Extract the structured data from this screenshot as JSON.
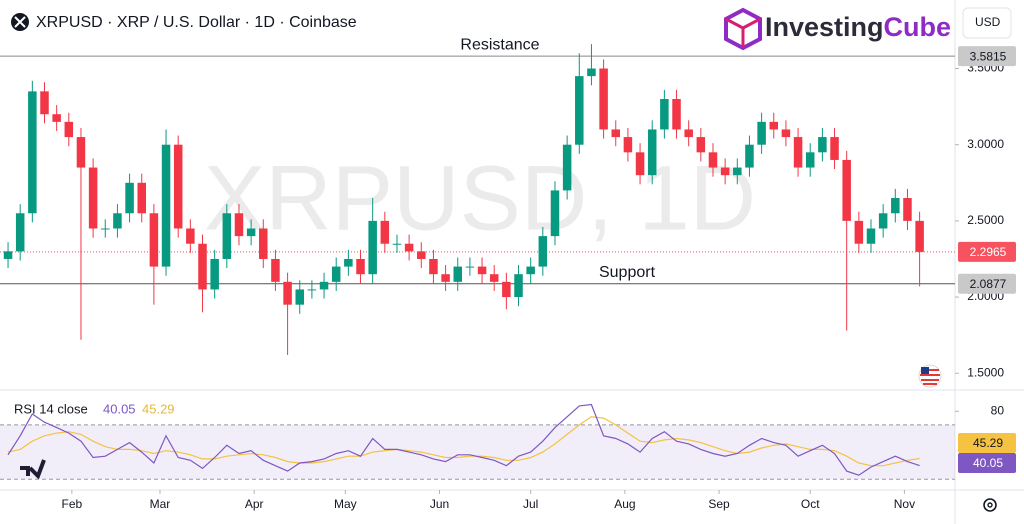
{
  "chart_data": {
    "type": "candlestick",
    "title": "XRPUSD · XRP / U.S. Dollar · 1D · Coinbase",
    "currency": "USD",
    "watermark": "XRPUSD, 1D",
    "logo": {
      "text1": "Investing",
      "text2": "Cube"
    },
    "up_color": "#089981",
    "down_color": "#f23645",
    "xlim": [
      9,
      320
    ],
    "xticks": [
      {
        "value": 31,
        "label": "Feb"
      },
      {
        "value": 60,
        "label": "Mar"
      },
      {
        "value": 91,
        "label": "Apr"
      },
      {
        "value": 121,
        "label": "May"
      },
      {
        "value": 152,
        "label": "Jun"
      },
      {
        "value": 182,
        "label": "Jul"
      },
      {
        "value": 213,
        "label": "Aug"
      },
      {
        "value": 244,
        "label": "Sep"
      },
      {
        "value": 274,
        "label": "Oct"
      },
      {
        "value": 305,
        "label": "Nov"
      }
    ],
    "ylim": [
      1.39,
      3.72
    ],
    "yticks": [
      {
        "value": 1.5,
        "label": "1.5000"
      },
      {
        "value": 2,
        "label": "2.0000"
      },
      {
        "value": 2.5,
        "label": "2.5000"
      },
      {
        "value": 3,
        "label": "3.0000"
      },
      {
        "value": 3.5,
        "label": "3.5000"
      }
    ],
    "levels": [
      {
        "label": "Resistance",
        "value": 3.5815,
        "color": "#888888"
      },
      {
        "label": "Support",
        "value": 2.0877,
        "color": "#555555"
      }
    ],
    "last_color": "#f7525f",
    "x": [
      10,
      14,
      18,
      22,
      26,
      30,
      34,
      38,
      42,
      46,
      50,
      54,
      58,
      62,
      66,
      70,
      74,
      78,
      82,
      86,
      90,
      94,
      98,
      102,
      106,
      110,
      114,
      118,
      122,
      126,
      130,
      134,
      138,
      142,
      146,
      150,
      154,
      158,
      162,
      166,
      170,
      174,
      178,
      182,
      186,
      190,
      194,
      198,
      202,
      206,
      210,
      214,
      218,
      222,
      226,
      230,
      234,
      238,
      242,
      246,
      250,
      254,
      258,
      262,
      266,
      270,
      274,
      278,
      282,
      286,
      290,
      294,
      298,
      302,
      306,
      310
    ],
    "open": [
      2.25,
      2.3,
      2.55,
      3.35,
      3.2,
      3.15,
      3.05,
      2.85,
      2.45,
      2.45,
      2.55,
      2.75,
      2.55,
      2.2,
      3.0,
      2.45,
      2.35,
      2.05,
      2.25,
      2.55,
      2.4,
      2.45,
      2.25,
      2.1,
      1.95,
      2.05,
      2.05,
      2.1,
      2.2,
      2.25,
      2.15,
      2.5,
      2.35,
      2.35,
      2.3,
      2.25,
      2.15,
      2.1,
      2.2,
      2.2,
      2.15,
      2.1,
      2.0,
      2.15,
      2.2,
      2.4,
      2.7,
      3.0,
      3.45,
      3.5,
      3.1,
      3.05,
      2.95,
      2.8,
      3.1,
      3.3,
      3.1,
      3.05,
      2.95,
      2.85,
      2.8,
      2.85,
      3.0,
      3.15,
      3.1,
      3.05,
      2.85,
      2.95,
      3.05,
      2.9,
      2.5,
      2.35,
      2.45,
      2.55,
      2.65,
      2.5
    ],
    "high": [
      2.36,
      2.61,
      3.42,
      3.41,
      3.26,
      3.21,
      3.11,
      2.91,
      2.51,
      2.61,
      2.81,
      2.81,
      2.61,
      3.1,
      3.06,
      2.51,
      2.41,
      2.31,
      2.61,
      2.61,
      2.51,
      2.51,
      2.31,
      2.16,
      2.11,
      2.11,
      2.16,
      2.26,
      2.31,
      2.31,
      2.65,
      2.56,
      2.41,
      2.41,
      2.36,
      2.31,
      2.21,
      2.26,
      2.26,
      2.26,
      2.21,
      2.16,
      2.21,
      2.26,
      2.46,
      2.76,
      3.06,
      3.6,
      3.66,
      3.56,
      3.16,
      3.11,
      3.01,
      3.16,
      3.36,
      3.36,
      3.16,
      3.11,
      3.01,
      2.91,
      2.91,
      3.06,
      3.21,
      3.21,
      3.16,
      3.11,
      3.01,
      3.11,
      3.11,
      2.96,
      2.56,
      2.51,
      2.61,
      2.71,
      2.71,
      2.56
    ],
    "low": [
      2.19,
      2.24,
      2.49,
      3.14,
      3.09,
      2.99,
      1.72,
      2.39,
      2.39,
      2.39,
      2.49,
      2.49,
      1.95,
      2.14,
      2.39,
      2.29,
      1.9,
      1.99,
      2.19,
      2.34,
      2.34,
      2.19,
      2.04,
      1.62,
      1.89,
      1.99,
      1.99,
      2.04,
      2.14,
      2.09,
      2.09,
      2.29,
      2.29,
      2.24,
      2.19,
      2.09,
      2.04,
      2.04,
      2.14,
      2.09,
      2.04,
      1.92,
      1.94,
      2.09,
      2.14,
      2.34,
      2.64,
      2.94,
      3.39,
      3.04,
      2.99,
      2.89,
      2.74,
      2.74,
      3.04,
      3.04,
      2.99,
      2.89,
      2.79,
      2.74,
      2.74,
      2.79,
      2.94,
      3.04,
      2.99,
      2.79,
      2.79,
      2.89,
      2.84,
      1.78,
      2.29,
      2.29,
      2.39,
      2.49,
      2.44,
      2.07
    ],
    "close": [
      2.3,
      2.55,
      3.35,
      3.2,
      3.15,
      3.05,
      2.85,
      2.45,
      2.45,
      2.55,
      2.75,
      2.55,
      2.2,
      3.0,
      2.45,
      2.35,
      2.05,
      2.25,
      2.55,
      2.4,
      2.45,
      2.25,
      2.1,
      1.95,
      2.05,
      2.05,
      2.1,
      2.2,
      2.25,
      2.15,
      2.5,
      2.35,
      2.35,
      2.3,
      2.25,
      2.15,
      2.1,
      2.2,
      2.2,
      2.15,
      2.1,
      2.0,
      2.15,
      2.2,
      2.4,
      2.7,
      3.0,
      3.45,
      3.5,
      3.1,
      3.05,
      2.95,
      2.8,
      3.1,
      3.3,
      3.1,
      3.05,
      2.95,
      2.85,
      2.8,
      2.85,
      3.0,
      3.15,
      3.1,
      3.05,
      2.85,
      2.95,
      3.05,
      2.9,
      2.5,
      2.35,
      2.45,
      2.55,
      2.65,
      2.5,
      2.2965
    ],
    "rsi": {
      "label": "RSI 14 close",
      "ylim": [
        28,
        92
      ],
      "yticks": [
        80
      ],
      "bands": [
        70,
        30
      ],
      "color": "#7e57c2",
      "ma_color": "#f5c242",
      "values": [
        48,
        62,
        78,
        72,
        68,
        64,
        58,
        46,
        47,
        52,
        57,
        50,
        42,
        62,
        46,
        44,
        38,
        46,
        55,
        49,
        51,
        44,
        40,
        36,
        42,
        43,
        45,
        49,
        51,
        47,
        60,
        52,
        52,
        50,
        48,
        45,
        43,
        48,
        48,
        46,
        44,
        40,
        47,
        50,
        58,
        68,
        76,
        84,
        85,
        62,
        60,
        56,
        50,
        60,
        65,
        58,
        56,
        52,
        49,
        47,
        49,
        55,
        60,
        57,
        55,
        47,
        51,
        55,
        49,
        36,
        33,
        39,
        43,
        47,
        43,
        40.05
      ],
      "ma": [
        50,
        52,
        58,
        62,
        64,
        65,
        63,
        58,
        54,
        52,
        52,
        51,
        49,
        51,
        50,
        48,
        45,
        45,
        47,
        48,
        49,
        48,
        46,
        43,
        42,
        42,
        43,
        45,
        47,
        47,
        50,
        51,
        52,
        51,
        50,
        48,
        46,
        46,
        47,
        47,
        46,
        44,
        44,
        46,
        50,
        56,
        63,
        70,
        76,
        75,
        70,
        64,
        58,
        57,
        59,
        60,
        59,
        57,
        54,
        51,
        49,
        50,
        53,
        55,
        56,
        54,
        52,
        52,
        51,
        47,
        42,
        40,
        40,
        42,
        44,
        45.29
      ]
    }
  }
}
